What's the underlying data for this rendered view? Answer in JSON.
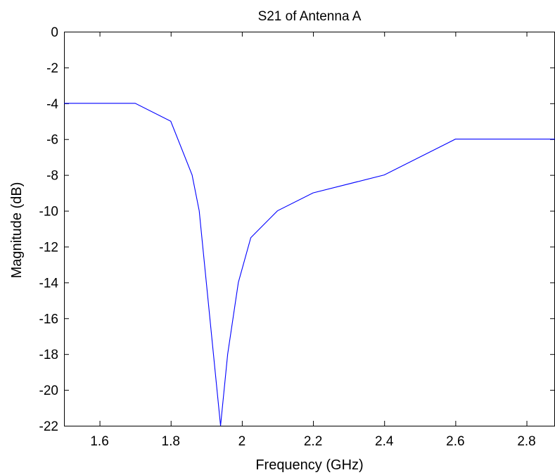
{
  "chart_data": {
    "type": "line",
    "title": "S21 of Antenna A",
    "xlabel": "Frequency (GHz)",
    "ylabel": "Magnitude (dB)",
    "xlim": [
      1.5,
      2.88
    ],
    "ylim": [
      -22,
      0
    ],
    "xticks": [
      1.6,
      1.8,
      2,
      2.2,
      2.4,
      2.6,
      2.8
    ],
    "xtick_labels": [
      "1.6",
      "1.8",
      "2",
      "2.2",
      "2.4",
      "2.6",
      "2.8"
    ],
    "yticks": [
      0,
      -2,
      -4,
      -6,
      -8,
      -10,
      -12,
      -14,
      -16,
      -18,
      -20,
      -22
    ],
    "ytick_labels": [
      "0",
      "-2",
      "-4",
      "-6",
      "-8",
      "-10",
      "-12",
      "-14",
      "-16",
      "-18",
      "-20",
      "-22"
    ],
    "grid": false,
    "legend": "none",
    "series": [
      {
        "color": "#0000ff",
        "x": [
          1.5,
          1.7,
          1.8,
          1.86,
          1.88,
          1.92,
          1.94,
          1.96,
          1.99,
          2.025,
          2.05,
          2.1,
          2.2,
          2.4,
          2.6,
          2.88
        ],
        "y": [
          -4,
          -4,
          -5,
          -8,
          -10,
          -18,
          -22,
          -18,
          -14,
          -11.5,
          -11,
          -10,
          -9,
          -8,
          -6,
          -6
        ]
      }
    ]
  }
}
